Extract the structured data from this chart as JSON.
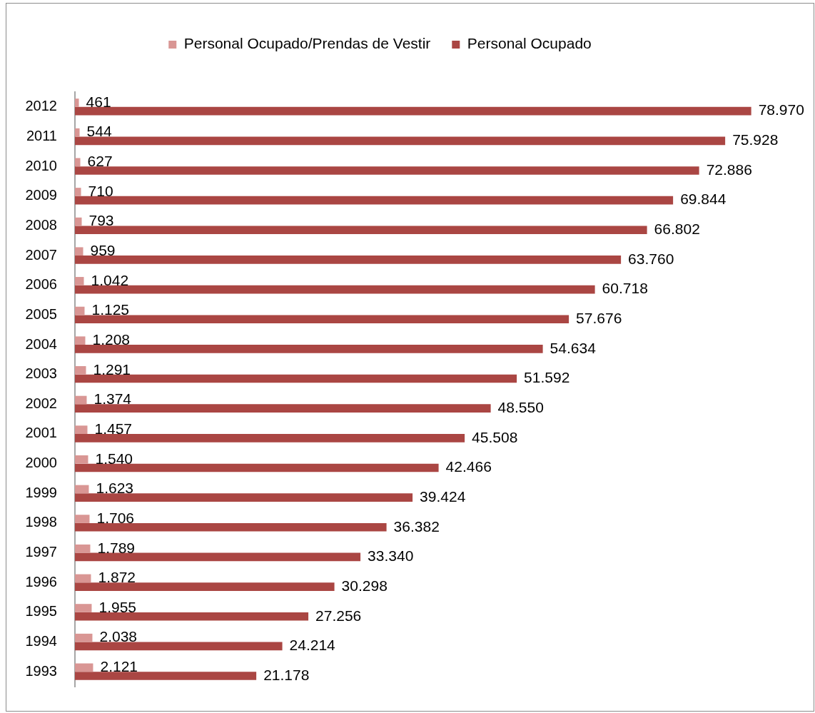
{
  "chart_data": {
    "type": "bar",
    "orientation": "horizontal",
    "legend": "top",
    "grid": false,
    "tick_labels": "y",
    "categories": [
      "2012",
      "2011",
      "2010",
      "2009",
      "2008",
      "2007",
      "2006",
      "2005",
      "2004",
      "2003",
      "2002",
      "2001",
      "2000",
      "1999",
      "1998",
      "1997",
      "1996",
      "1995",
      "1994",
      "1993"
    ],
    "series": [
      {
        "name": "Personal Ocupado/Prendas de Vestir",
        "color": "#d99694",
        "values": [
          461,
          544,
          627,
          710,
          793,
          959,
          1042,
          1125,
          1208,
          1291,
          1374,
          1457,
          1540,
          1623,
          1706,
          1789,
          1872,
          1955,
          2038,
          2121
        ],
        "value_labels": [
          "461",
          "544",
          "627",
          "710",
          "793",
          "959",
          "1.042",
          "1.125",
          "1.208",
          "1.291",
          "1.374",
          "1.457",
          "1.540",
          "1.623",
          "1.706",
          "1.789",
          "1.872",
          "1.955",
          "2.038",
          "2.121"
        ]
      },
      {
        "name": "Personal Ocupado",
        "color": "#aa4643",
        "values": [
          78970,
          75928,
          72886,
          69844,
          66802,
          63760,
          60718,
          57676,
          54634,
          51592,
          48550,
          45508,
          42466,
          39424,
          36382,
          33340,
          30298,
          27256,
          24214,
          21178
        ],
        "value_labels": [
          "78.970",
          "75.928",
          "72.886",
          "69.844",
          "66.802",
          "63.760",
          "60.718",
          "57.676",
          "54.634",
          "51.592",
          "48.550",
          "45.508",
          "42.466",
          "39.424",
          "36.382",
          "33.340",
          "30.298",
          "27.256",
          "24.214",
          "21.178"
        ]
      }
    ]
  }
}
